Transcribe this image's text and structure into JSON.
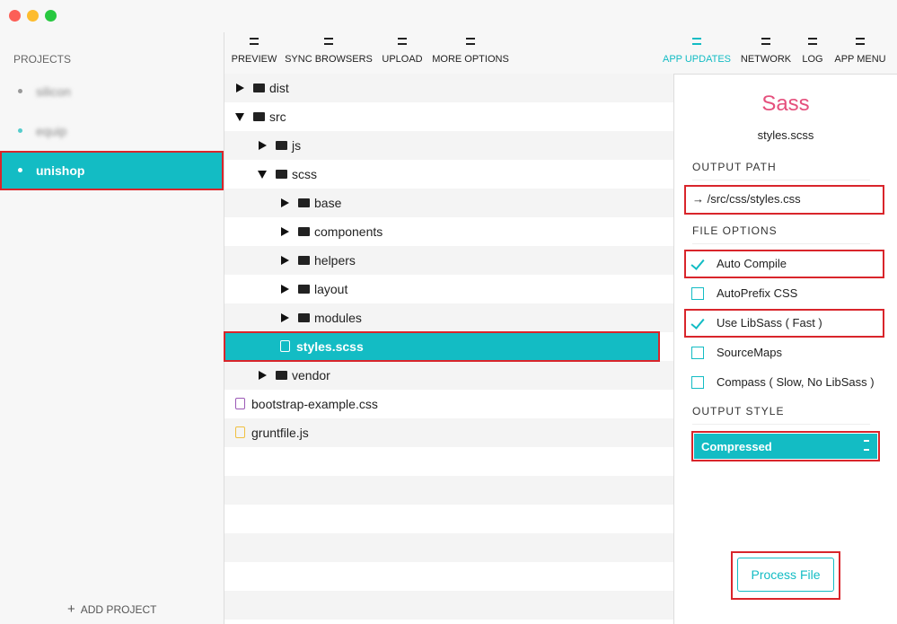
{
  "sidebar": {
    "heading": "PROJECTS",
    "projects": [
      {
        "name": "silicon",
        "active": false
      },
      {
        "name": "equip",
        "active": false
      },
      {
        "name": "unishop",
        "active": true
      }
    ],
    "add_project": "ADD PROJECT"
  },
  "toolbar": {
    "left": [
      {
        "label": "PREVIEW",
        "active": false
      },
      {
        "label": "SYNC BROWSERS",
        "active": false
      },
      {
        "label": "UPLOAD",
        "active": false
      },
      {
        "label": "MORE OPTIONS",
        "active": false
      }
    ],
    "right": [
      {
        "label": "APP UPDATES",
        "active": true
      },
      {
        "label": "NETWORK",
        "active": false
      },
      {
        "label": "LOG",
        "active": false
      },
      {
        "label": "APP MENU",
        "active": false
      }
    ]
  },
  "tree": [
    {
      "label": "dist",
      "depth": 0,
      "kind": "folder",
      "open": false
    },
    {
      "label": "src",
      "depth": 0,
      "kind": "folder",
      "open": true
    },
    {
      "label": "js",
      "depth": 1,
      "kind": "folder",
      "open": false
    },
    {
      "label": "scss",
      "depth": 1,
      "kind": "folder",
      "open": true
    },
    {
      "label": "base",
      "depth": 2,
      "kind": "folder",
      "open": false
    },
    {
      "label": "components",
      "depth": 2,
      "kind": "folder",
      "open": false
    },
    {
      "label": "helpers",
      "depth": 2,
      "kind": "folder",
      "open": false
    },
    {
      "label": "layout",
      "depth": 2,
      "kind": "folder",
      "open": false
    },
    {
      "label": "modules",
      "depth": 2,
      "kind": "folder",
      "open": false
    },
    {
      "label": "styles.scss",
      "depth": 2,
      "kind": "scss",
      "selected": true
    },
    {
      "label": "vendor",
      "depth": 1,
      "kind": "folder",
      "open": false
    },
    {
      "label": "bootstrap-example.css",
      "depth": 0,
      "kind": "css"
    },
    {
      "label": "gruntfile.js",
      "depth": 0,
      "kind": "js"
    }
  ],
  "panel": {
    "title": "Sass",
    "file": "styles.scss",
    "output_path_label": "OUTPUT  PATH",
    "output_path": "→ /src/css/styles.css",
    "file_options_label": "FILE  OPTIONS",
    "options": [
      {
        "label": "Auto Compile",
        "checked": true
      },
      {
        "label": "AutoPrefix CSS",
        "checked": false
      },
      {
        "label": "Use LibSass ( Fast )",
        "checked": true
      },
      {
        "label": "SourceMaps",
        "checked": false
      },
      {
        "label": "Compass ( Slow, No LibSass )",
        "checked": false
      }
    ],
    "output_style_label": "OUTPUT STYLE",
    "output_style": "Compressed",
    "button": "Process File"
  }
}
